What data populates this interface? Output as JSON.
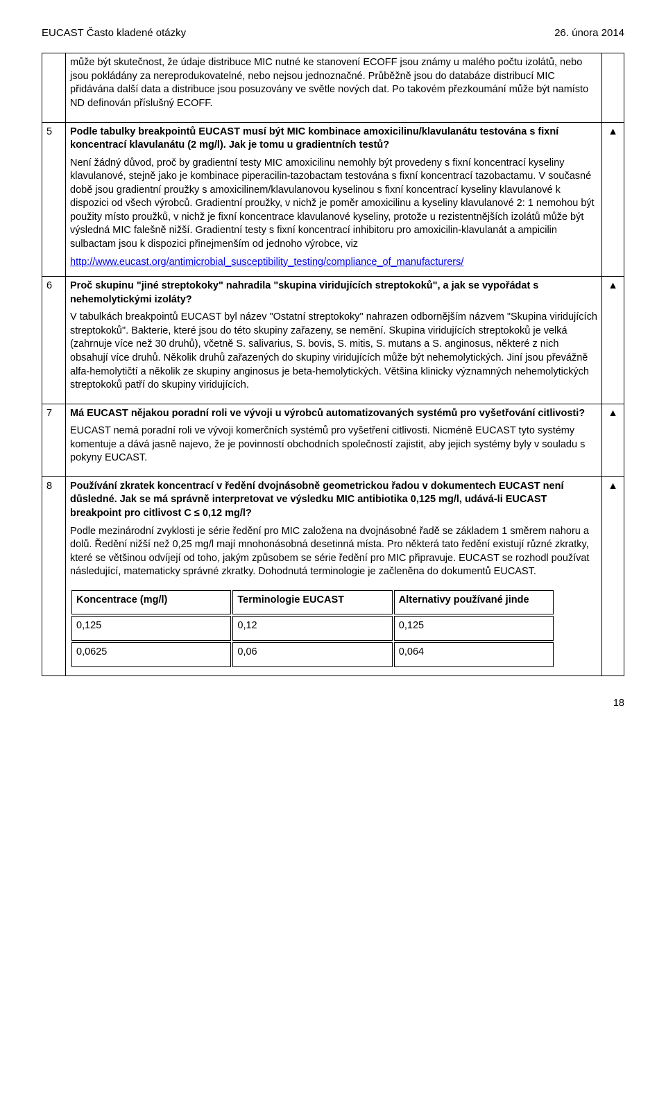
{
  "header": {
    "left": "EUCAST Často kladené otázky",
    "right": "26. února 2014"
  },
  "rows": [
    {
      "num": "",
      "marker": "",
      "question": "",
      "answer": "může být skutečnost, že údaje distribuce MIC nutné ke stanovení ECOFF jsou známy u malého počtu izolátů, nebo jsou pokládány za nereprodukovatelné, nebo nejsou jednoznačné. Průběžně jsou do databáze distribucí MIC přidávána další data a distribuce jsou posuzovány ve světle nových dat. Po takovém přezkoumání může být namísto ND definován příslušný ECOFF."
    },
    {
      "num": "5",
      "marker": "▲",
      "question": "Podle tabulky breakpointů EUCAST musí být MIC kombinace amoxicilinu/klavulanátu testována s fixní koncentrací klavulanátu (2 mg/l). Jak je tomu u gradientních testů?",
      "answer": "Není žádný důvod, proč by gradientní testy MIC amoxicilinu nemohly být provedeny s fixní koncentrací kyseliny klavulanové, stejně jako je kombinace piperacilin-tazobactam testována s fixní koncentrací tazobactamu. V současné době jsou gradientní proužky s amoxicilinem/klavulanovou kyselinou s fixní koncentrací kyseliny klavulanové k dispozici od všech výrobců. Gradientní proužky, v nichž je poměr amoxicilinu a kyseliny klavulanové 2: 1 nemohou být použity místo proužků, v nichž je fixní koncentrace klavulanové kyseliny, protože u rezistentnějších izolátů může být výsledná MIC falešně nižší. Gradientní testy s fixní koncentrací inhibitoru pro amoxicilin-klavulanát a ampicilin sulbactam jsou k dispozici přinejmenším od jednoho výrobce, viz",
      "link_text": "http://www.eucast.org/antimicrobial_susceptibility_testing/compliance_of_manufacturers/"
    },
    {
      "num": "6",
      "marker": "▲",
      "question": "Proč skupinu \"jiné streptokoky\" nahradila \"skupina viridujících streptokoků\", a jak se vypořádat s nehemolytickými izoláty?",
      "answer": "V tabulkách breakpointů EUCAST byl název \"Ostatní streptokoky\" nahrazen odbornějším názvem \"Skupina viridujících streptokoků\". Bakterie, které jsou do této skupiny zařazeny, se nemění. Skupina viridujících streptokoků je velká (zahrnuje více než 30 druhů), včetně S. salivarius, S. bovis, S. mitis, S. mutans a S. anginosus, některé z nich obsahují více druhů. Několik druhů zařazených do skupiny viridujících může být nehemolytických. Jiní jsou převážně alfa-hemolytičtí a několik ze skupiny anginosus je beta-hemolytických. Většina klinicky významných nehemolytických streptokoků patří do skupiny viridujících."
    },
    {
      "num": "7",
      "marker": "▲",
      "question": "Má EUCAST nějakou poradní roli ve vývoji u výrobců automatizovaných systémů pro vyšetřování citlivosti?",
      "answer": "EUCAST nemá poradní roli ve vývoji komerčních systémů pro vyšetření citlivosti. Nicméně EUCAST tyto systémy komentuje a dává jasně najevo, že je povinností obchodních společností zajistit, aby jejich systémy byly v souladu s pokyny EUCAST."
    },
    {
      "num": "8",
      "marker": "▲",
      "question": "Používání zkratek koncentrací v ředění dvojnásobně geometrickou řadou v dokumentech EUCAST není důsledné. Jak se má správně interpretovat ve výsledku MIC antibiotika 0,125 mg/l, udává-li EUCAST breakpoint pro citlivost C ≤ 0,12 mg/l?",
      "answer": "Podle mezinárodní zvyklosti je série ředění pro MIC založena na dvojnásobné řadě se základem 1 směrem nahoru a dolů. Ředění nižší než 0,25 mg/l mají mnohonásobná desetinná místa. Pro některá tato ředění existují různé zkratky, které se většinou odvíjejí od toho, jakým způsobem se série ředění pro MIC připravuje. EUCAST se rozhodl používat následující, matematicky správné zkratky. Dohodnutá terminologie je začleněna do dokumentů EUCAST.",
      "concTable": {
        "headers": [
          "Koncentrace (mg/l)",
          "Terminologie EUCAST",
          "Alternativy používané jinde"
        ],
        "rows": [
          [
            "0,125",
            "0,12",
            "0,125"
          ],
          [
            "0,0625",
            "0,06",
            "0,064"
          ]
        ]
      }
    }
  ],
  "footer": {
    "page": "18"
  }
}
